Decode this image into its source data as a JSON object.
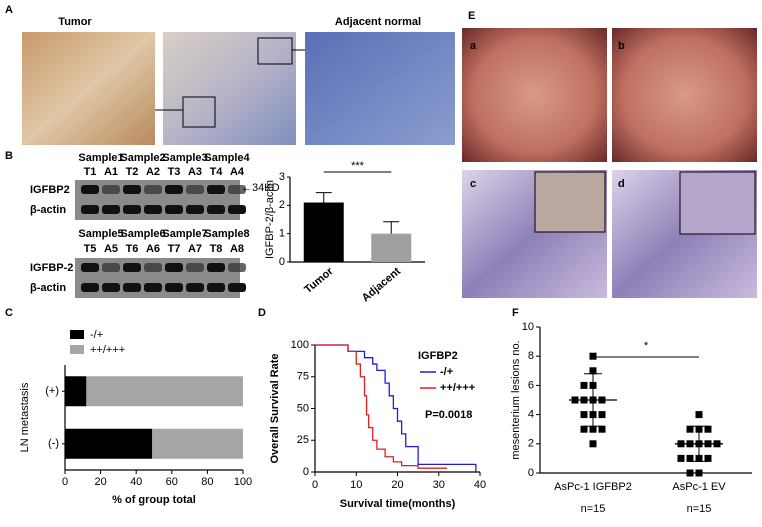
{
  "panel_labels": [
    "A",
    "B",
    "C",
    "D",
    "E",
    "F"
  ],
  "panel_a": {
    "left_title": "Tumor",
    "right_title": "Adjacent normal"
  },
  "panel_b_blot": {
    "upper": {
      "samples": [
        "Sample1",
        "Sample2",
        "Sample3",
        "Sample4"
      ],
      "lanes": [
        "T1",
        "A1",
        "T2",
        "A2",
        "T3",
        "A3",
        "T4",
        "A4"
      ],
      "proteins": [
        "IGFBP2",
        "β-actin"
      ],
      "marker": "←34KD"
    },
    "lower": {
      "samples": [
        "Sample5",
        "Sample6",
        "Sample7",
        "Sample8"
      ],
      "lanes": [
        "T5",
        "A5",
        "T6",
        "A6",
        "T7",
        "A7",
        "T8",
        "A8"
      ],
      "proteins": [
        "IGFBP-2",
        "β-actin"
      ]
    }
  },
  "panel_e": {
    "sublabels": [
      "a",
      "b",
      "c",
      "d"
    ]
  },
  "chart_data": [
    {
      "type": "bar",
      "ylabel": "IGFBP-2/β-actin",
      "annotation": "***",
      "categories": [
        "Tumor",
        "Adjacent"
      ],
      "values": [
        2.1,
        1.0
      ],
      "errors": [
        0.35,
        0.42
      ],
      "colors": [
        "#000000",
        "#a0a0a0"
      ],
      "ylim": [
        0,
        3
      ],
      "yticks": [
        0,
        1,
        2,
        3
      ]
    },
    {
      "type": "stacked-bar",
      "ylabel": "LN metastasis",
      "xlabel": "% of group total",
      "categories": [
        "(+)",
        "(-)"
      ],
      "series": [
        {
          "name": "-/+",
          "color": "#000000",
          "values": [
            12,
            49
          ]
        },
        {
          "name": "++/+++",
          "color": "#a6a6a6",
          "values": [
            88,
            51
          ]
        }
      ],
      "xlim": [
        0,
        100
      ],
      "xticks": [
        0,
        20,
        40,
        60,
        80,
        100
      ]
    },
    {
      "type": "line",
      "ylabel": "Overall Survival Rate",
      "xlabel": "Survival time(months)",
      "legend_title": "IGFBP2",
      "annotation": "P=0.0018",
      "series": [
        {
          "name": "-/+",
          "color": "#1f1fd6",
          "x": [
            0,
            8,
            8,
            12,
            12,
            14,
            14,
            15,
            15,
            17,
            17,
            18,
            18,
            19,
            19,
            20,
            20,
            21,
            21,
            22,
            22,
            25,
            25,
            39,
            39
          ],
          "values": [
            100,
            100,
            95,
            95,
            90,
            90,
            85,
            85,
            80,
            80,
            70,
            70,
            60,
            60,
            50,
            50,
            40,
            40,
            30,
            30,
            20,
            20,
            6,
            6,
            0
          ]
        },
        {
          "name": "++/+++",
          "color": "#e02020",
          "x": [
            0,
            8,
            8,
            10,
            10,
            11,
            11,
            12,
            12,
            12.5,
            12.5,
            13,
            13,
            14,
            14,
            15,
            15,
            17,
            17,
            19,
            19,
            21,
            21,
            25,
            25,
            32
          ],
          "values": [
            100,
            100,
            95,
            95,
            85,
            85,
            75,
            75,
            60,
            60,
            45,
            45,
            35,
            35,
            25,
            25,
            18,
            18,
            12,
            12,
            8,
            8,
            5,
            5,
            3,
            3
          ]
        }
      ],
      "xlim": [
        0,
        40
      ],
      "xticks": [
        0,
        10,
        20,
        30,
        40
      ],
      "ylim": [
        0,
        100
      ],
      "yticks": [
        0,
        25,
        50,
        75,
        100
      ]
    },
    {
      "type": "scatter",
      "ylabel": "mesenterium lesions no.",
      "annotation": "*",
      "categories": [
        "AsPc-1 IGFBP2",
        "AsPc-1 EV"
      ],
      "n_labels": [
        "n=15",
        "n=15"
      ],
      "series": [
        {
          "color": "#000000",
          "values": [
            8,
            7,
            6,
            6,
            5,
            5,
            5,
            5,
            4,
            4,
            4,
            3,
            3,
            3,
            2
          ]
        },
        {
          "color": "#000000",
          "values": [
            4,
            3,
            3,
            3,
            2,
            2,
            2,
            2,
            2,
            1,
            1,
            1,
            1,
            0,
            0
          ]
        }
      ],
      "means": [
        5,
        2
      ],
      "sd": [
        1.8,
        1.2
      ],
      "ylim": [
        0,
        10
      ],
      "yticks": [
        0,
        2,
        4,
        6,
        8,
        10
      ]
    }
  ]
}
